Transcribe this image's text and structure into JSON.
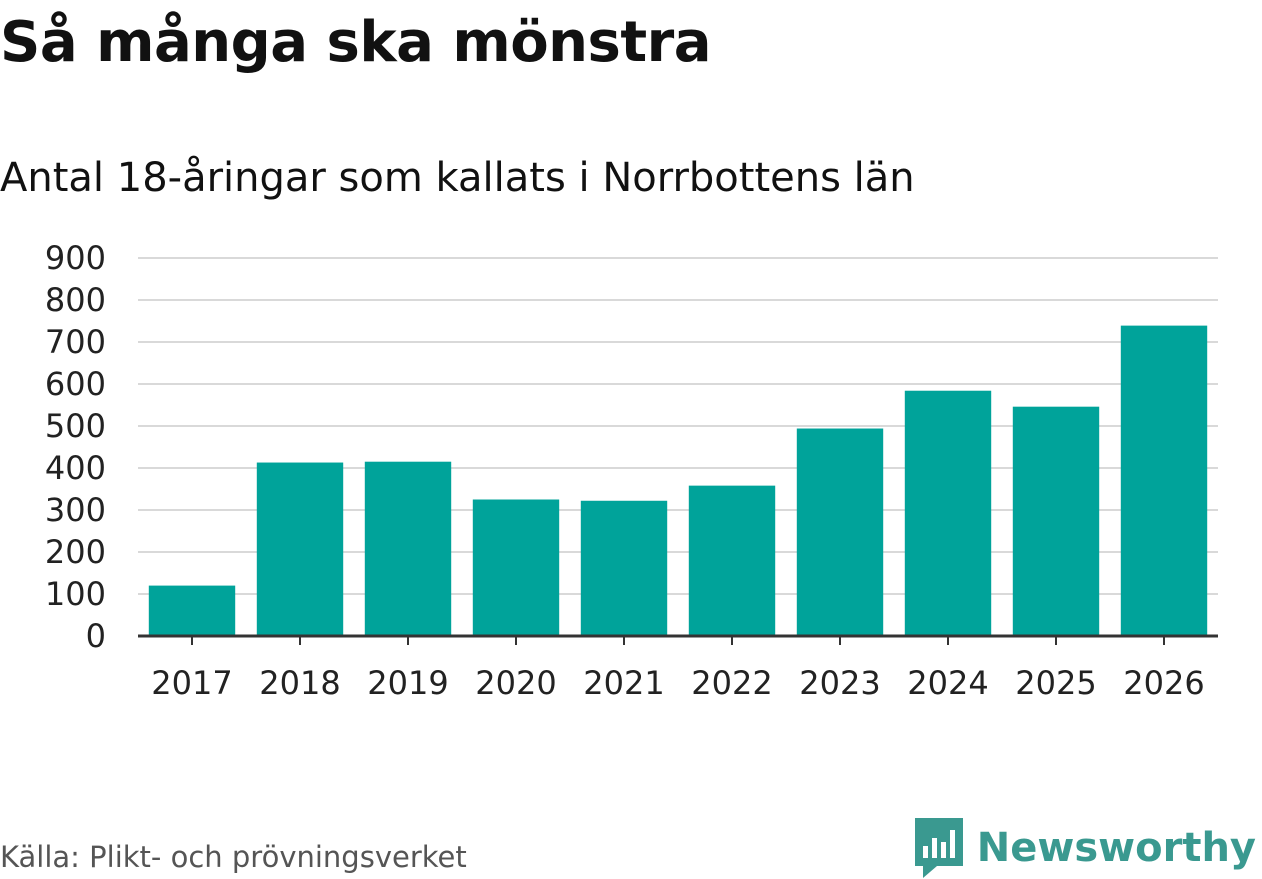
{
  "header": {
    "title": "Så många ska mönstra",
    "subtitle": "Antal 18-åringar som kallats i Norrbottens län"
  },
  "footer": {
    "source": "Källa: Plikt- och prövningsverket",
    "brand": "Newsworthy",
    "logo_icon": "bar-chart-speech-bubble-icon"
  },
  "colors": {
    "bar": "#00a39a",
    "grid": "#d9d9d9",
    "axis": "#333333",
    "brand": "#3a9990"
  },
  "chart_data": {
    "type": "bar",
    "title": "Så många ska mönstra",
    "subtitle": "Antal 18-åringar som kallats i Norrbottens län",
    "xlabel": "",
    "ylabel": "",
    "categories": [
      "2017",
      "2018",
      "2019",
      "2020",
      "2021",
      "2022",
      "2023",
      "2024",
      "2025",
      "2026"
    ],
    "values": [
      120,
      413,
      415,
      325,
      322,
      358,
      494,
      584,
      546,
      739
    ],
    "ylim": [
      0,
      900
    ],
    "yticks": [
      0,
      100,
      200,
      300,
      400,
      500,
      600,
      700,
      800,
      900
    ],
    "grid": true,
    "legend": "none"
  }
}
